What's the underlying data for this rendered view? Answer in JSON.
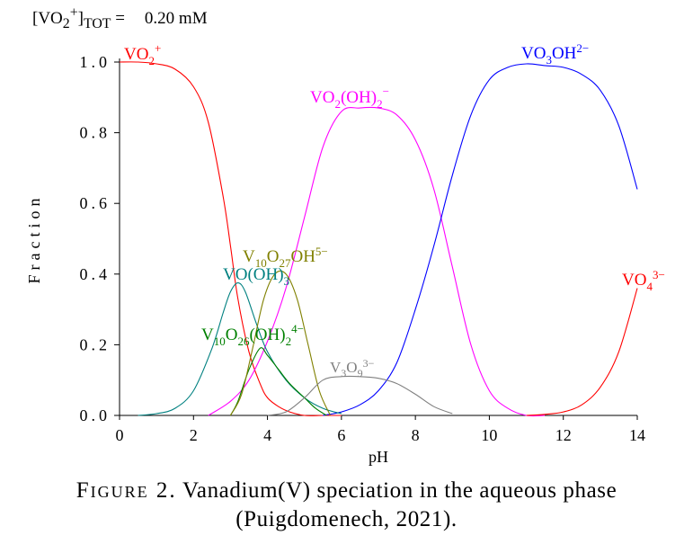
{
  "header": {
    "tot_label": "[VO2+]TOT =",
    "tot_value": "0.20 mM"
  },
  "caption": {
    "figure": "Figure 2.",
    "text_line1": "Vanadium(V) speciation in the aqueous phase",
    "text_line2": "(Puigdomenech, 2021)."
  },
  "chart_data": {
    "type": "line",
    "title": "",
    "xlabel": "pH",
    "ylabel": "Fraction",
    "xlim": [
      0,
      14
    ],
    "ylim": [
      0,
      1.0
    ],
    "x_ticks": [
      "0",
      "2",
      "4",
      "6",
      "8",
      "10",
      "12",
      "14"
    ],
    "y_ticks": [
      "0.0",
      "0.2",
      "0.4",
      "0.6",
      "0.8",
      "1.0"
    ],
    "grid": false,
    "legend": "none (labels placed on curves)",
    "series": [
      {
        "name": "VO2+",
        "color": "#ff0000",
        "x": [
          0,
          0.5,
          1.0,
          1.5,
          2.0,
          2.4,
          2.8,
          3.0,
          3.2,
          3.5,
          3.8,
          4.0,
          4.3,
          4.6,
          5.0,
          5.5,
          6.0
        ],
        "y": [
          1.0,
          1.0,
          0.995,
          0.98,
          0.93,
          0.83,
          0.62,
          0.48,
          0.33,
          0.18,
          0.09,
          0.05,
          0.025,
          0.01,
          0.0,
          0.0,
          0.0
        ]
      },
      {
        "name": "VO2(OH)2−",
        "color": "#ff00ff",
        "x": [
          2.4,
          3.0,
          3.5,
          4.0,
          4.5,
          5.0,
          5.5,
          6.0,
          6.5,
          7.0,
          7.5,
          8.0,
          8.5,
          9.0,
          9.5,
          10.0,
          10.5,
          11.0,
          11.5
        ],
        "y": [
          0.0,
          0.04,
          0.1,
          0.21,
          0.36,
          0.56,
          0.76,
          0.86,
          0.87,
          0.87,
          0.85,
          0.78,
          0.64,
          0.42,
          0.2,
          0.07,
          0.02,
          0.0,
          0.0
        ]
      },
      {
        "name": "VO3OH2−",
        "color": "#0000ff",
        "x": [
          5.5,
          6.0,
          6.5,
          7.0,
          7.5,
          8.0,
          8.5,
          9.0,
          9.5,
          10.0,
          10.5,
          11.0,
          11.5,
          12.0,
          12.5,
          13.0,
          13.5,
          14.0
        ],
        "y": [
          0.0,
          0.01,
          0.03,
          0.07,
          0.15,
          0.3,
          0.48,
          0.68,
          0.85,
          0.95,
          0.985,
          0.995,
          0.99,
          0.985,
          0.965,
          0.92,
          0.82,
          0.64
        ]
      },
      {
        "name": "VO43−",
        "color": "#ff0000",
        "x": [
          11.0,
          11.5,
          12.0,
          12.5,
          13.0,
          13.5,
          14.0
        ],
        "y": [
          0.0,
          0.003,
          0.01,
          0.03,
          0.08,
          0.18,
          0.36
        ]
      },
      {
        "name": "VO(OH)3",
        "color": "#008080",
        "x": [
          0.5,
          1.0,
          1.5,
          2.0,
          2.5,
          2.8,
          3.0,
          3.2,
          3.4,
          3.7,
          4.0,
          4.5,
          5.0,
          5.5,
          6.0
        ],
        "y": [
          0.0,
          0.005,
          0.02,
          0.07,
          0.19,
          0.29,
          0.35,
          0.375,
          0.35,
          0.26,
          0.18,
          0.1,
          0.05,
          0.02,
          0.005
        ]
      },
      {
        "name": "V10O26(OH)24−",
        "color": "#008000",
        "x": [
          3.0,
          3.2,
          3.5,
          3.8,
          4.0,
          4.3,
          4.6,
          5.0,
          5.3,
          5.6
        ],
        "y": [
          0.0,
          0.04,
          0.13,
          0.19,
          0.17,
          0.13,
          0.09,
          0.05,
          0.02,
          0.0
        ]
      },
      {
        "name": "V10O27OH5−",
        "color": "#808000",
        "x": [
          3.0,
          3.3,
          3.6,
          3.9,
          4.2,
          4.5,
          4.8,
          5.1,
          5.4,
          5.7
        ],
        "y": [
          0.0,
          0.06,
          0.19,
          0.33,
          0.4,
          0.4,
          0.33,
          0.2,
          0.07,
          0.0
        ]
      },
      {
        "name": "V3O93−",
        "color": "#808080",
        "x": [
          4.0,
          4.5,
          5.0,
          5.5,
          6.0,
          6.5,
          7.0,
          7.5,
          8.0,
          8.5,
          9.0
        ],
        "y": [
          0.0,
          0.01,
          0.05,
          0.1,
          0.11,
          0.11,
          0.105,
          0.09,
          0.06,
          0.025,
          0.005
        ]
      }
    ]
  }
}
